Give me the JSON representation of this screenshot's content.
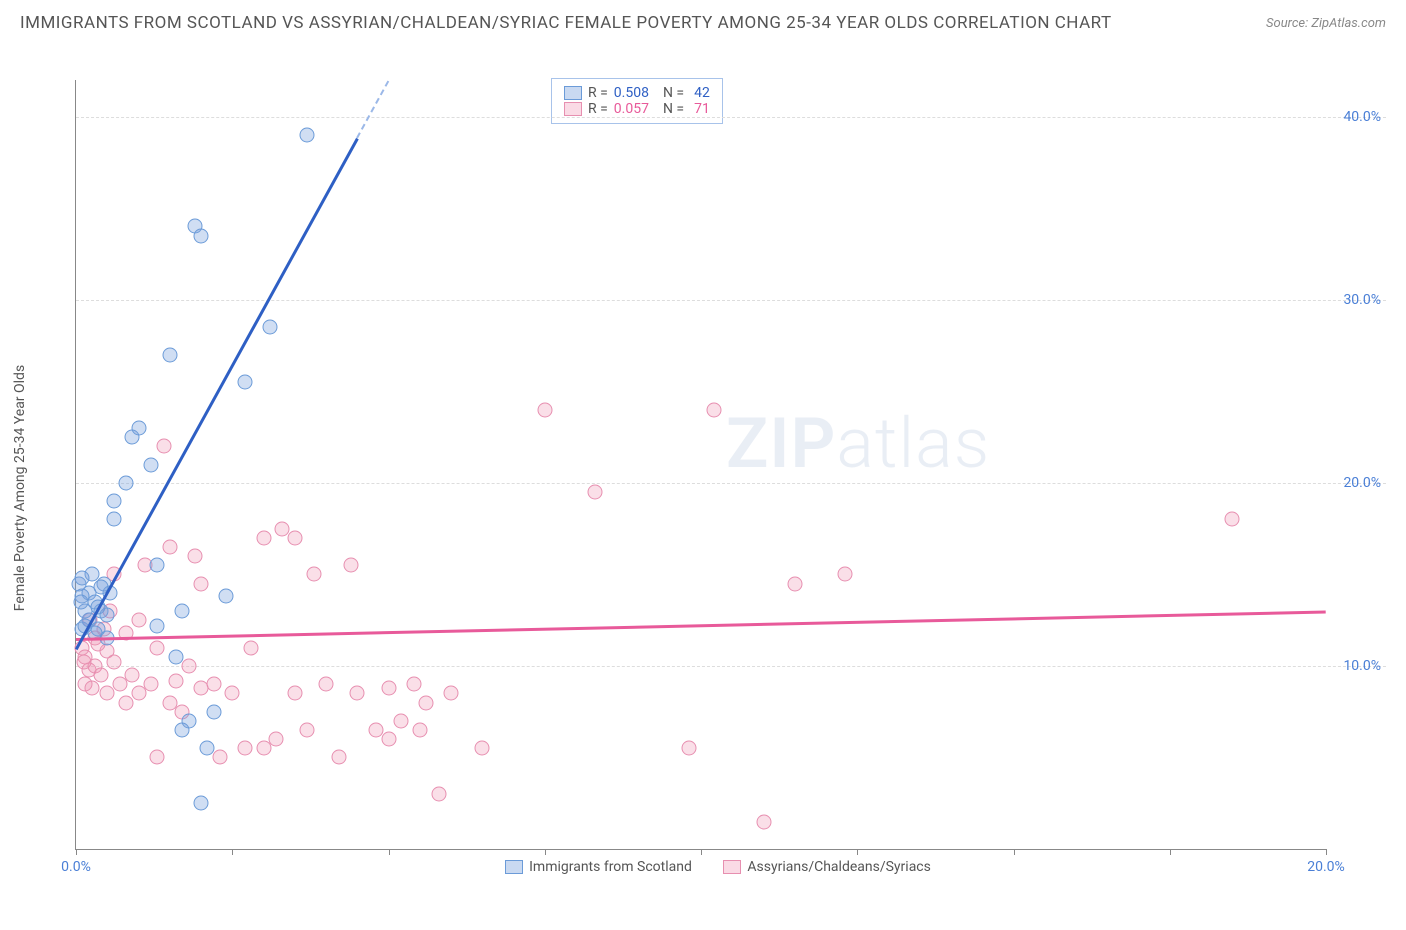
{
  "title": "IMMIGRANTS FROM SCOTLAND VS ASSYRIAN/CHALDEAN/SYRIAC FEMALE POVERTY AMONG 25-34 YEAR OLDS CORRELATION CHART",
  "source": "Source: ZipAtlas.com",
  "ylabel": "Female Poverty Among 25-34 Year Olds",
  "watermark_a": "ZIP",
  "watermark_b": "atlas",
  "chart": {
    "type": "scatter",
    "xlim": [
      0,
      20
    ],
    "ylim": [
      0,
      42
    ],
    "xticks": [
      0,
      2.5,
      5,
      7.5,
      10,
      12.5,
      15,
      17.5,
      20
    ],
    "xtick_labels": {
      "0": "0.0%",
      "20": "20.0%"
    },
    "yticks": [
      10,
      20,
      30,
      40
    ],
    "ytick_labels": [
      "10.0%",
      "20.0%",
      "30.0%",
      "40.0%"
    ],
    "grid_color": "#dddddd",
    "background": "#ffffff",
    "axis_color": "#888888",
    "series": {
      "blue": {
        "label": "Immigrants from Scotland",
        "color_fill": "rgba(120,160,220,0.35)",
        "color_stroke": "#6b9bd8",
        "R": "0.508",
        "N": "42",
        "trend": {
          "x1": 0,
          "y1": 11,
          "x2": 5,
          "y2": 42,
          "color": "#2e5fc4",
          "dash_after_x": 4.5
        },
        "points": [
          [
            0.1,
            12
          ],
          [
            0.15,
            13
          ],
          [
            0.2,
            12.5
          ],
          [
            0.2,
            14
          ],
          [
            0.3,
            13.5
          ],
          [
            0.35,
            12
          ],
          [
            0.4,
            13
          ],
          [
            0.45,
            14.5
          ],
          [
            0.5,
            12.8
          ],
          [
            0.5,
            11.5
          ],
          [
            0.6,
            18
          ],
          [
            0.6,
            19
          ],
          [
            0.8,
            20
          ],
          [
            0.9,
            22.5
          ],
          [
            1.0,
            23
          ],
          [
            1.2,
            21
          ],
          [
            1.3,
            12.2
          ],
          [
            1.3,
            15.5
          ],
          [
            1.5,
            27
          ],
          [
            1.6,
            10.5
          ],
          [
            1.7,
            13
          ],
          [
            1.8,
            7
          ],
          [
            1.9,
            34
          ],
          [
            2.0,
            33.5
          ],
          [
            2.1,
            5.5
          ],
          [
            2.2,
            7.5
          ],
          [
            2.4,
            13.8
          ],
          [
            2.7,
            25.5
          ],
          [
            3.1,
            28.5
          ],
          [
            3.7,
            39
          ],
          [
            0.05,
            14.5
          ],
          [
            0.1,
            13.8
          ],
          [
            0.25,
            15
          ],
          [
            2.0,
            2.5
          ],
          [
            1.7,
            6.5
          ],
          [
            0.3,
            11.8
          ],
          [
            0.55,
            14
          ],
          [
            0.35,
            13.2
          ],
          [
            0.15,
            12.2
          ],
          [
            0.08,
            13.5
          ],
          [
            0.4,
            14.3
          ],
          [
            0.1,
            14.8
          ]
        ]
      },
      "pink": {
        "label": "Assyrians/Chaldeans/Syriacs",
        "color_fill": "rgba(240,150,180,0.3)",
        "color_stroke": "#e78fb0",
        "R": "0.057",
        "N": "71",
        "trend": {
          "x1": 0,
          "y1": 11.5,
          "x2": 20,
          "y2": 13,
          "color": "#e85a9a"
        },
        "points": [
          [
            0.1,
            11
          ],
          [
            0.15,
            10.5
          ],
          [
            0.2,
            9.8
          ],
          [
            0.3,
            10
          ],
          [
            0.3,
            11.5
          ],
          [
            0.4,
            9.5
          ],
          [
            0.5,
            10.8
          ],
          [
            0.5,
            8.5
          ],
          [
            0.6,
            10.2
          ],
          [
            0.7,
            9
          ],
          [
            0.8,
            11.8
          ],
          [
            0.8,
            8
          ],
          [
            0.9,
            9.5
          ],
          [
            1.0,
            12.5
          ],
          [
            1.0,
            8.5
          ],
          [
            1.1,
            15.5
          ],
          [
            1.2,
            9
          ],
          [
            1.3,
            11
          ],
          [
            1.4,
            22
          ],
          [
            1.5,
            16.5
          ],
          [
            1.5,
            8
          ],
          [
            1.6,
            9.2
          ],
          [
            1.7,
            7.5
          ],
          [
            1.8,
            10
          ],
          [
            1.9,
            16
          ],
          [
            2.0,
            8.8
          ],
          [
            2.2,
            9
          ],
          [
            2.3,
            5
          ],
          [
            2.5,
            8.5
          ],
          [
            2.7,
            5.5
          ],
          [
            2.8,
            11
          ],
          [
            3.0,
            17
          ],
          [
            3.0,
            5.5
          ],
          [
            3.2,
            6
          ],
          [
            3.3,
            17.5
          ],
          [
            3.5,
            8.5
          ],
          [
            3.7,
            6.5
          ],
          [
            3.8,
            15
          ],
          [
            4.0,
            9
          ],
          [
            4.2,
            5
          ],
          [
            4.4,
            15.5
          ],
          [
            4.5,
            8.5
          ],
          [
            4.8,
            6.5
          ],
          [
            5.0,
            8.8
          ],
          [
            5.0,
            6
          ],
          [
            5.2,
            7
          ],
          [
            5.4,
            9
          ],
          [
            5.5,
            6.5
          ],
          [
            5.6,
            8
          ],
          [
            5.8,
            3
          ],
          [
            6.0,
            8.5
          ],
          [
            6.5,
            5.5
          ],
          [
            7.5,
            24
          ],
          [
            8.3,
            19.5
          ],
          [
            9.8,
            5.5
          ],
          [
            10.2,
            24
          ],
          [
            11.5,
            14.5
          ],
          [
            12.3,
            15
          ],
          [
            11.0,
            1.5
          ],
          [
            18.5,
            18
          ],
          [
            0.15,
            9
          ],
          [
            0.25,
            8.8
          ],
          [
            0.35,
            11.2
          ],
          [
            0.45,
            12
          ],
          [
            0.55,
            13
          ],
          [
            0.12,
            10.2
          ],
          [
            0.22,
            12.5
          ],
          [
            0.6,
            15
          ],
          [
            1.3,
            5
          ],
          [
            2.0,
            14.5
          ],
          [
            3.5,
            17
          ]
        ]
      }
    }
  },
  "legend_stats": {
    "r_label": "R =",
    "n_label": "N ="
  },
  "bottom_legend": {
    "blue": "Immigrants from Scotland",
    "pink": "Assyrians/Chaldeans/Syriacs"
  }
}
